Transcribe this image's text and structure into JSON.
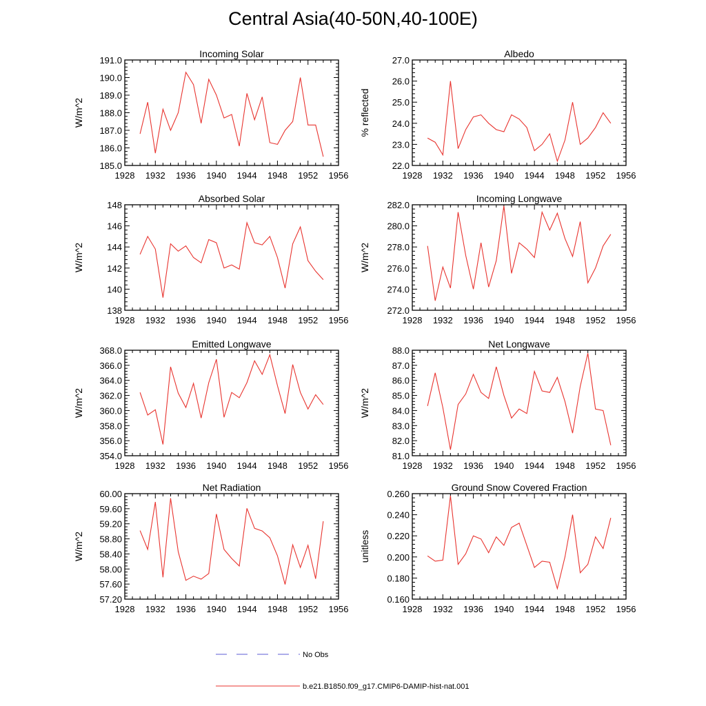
{
  "figure": {
    "title": "Central Asia(40-50N,40-100E)"
  },
  "legend": {
    "entries": [
      {
        "label": "No Obs",
        "color": "#5b5bd6",
        "dashed": true
      },
      {
        "label": "b.e21.B1850.f09_g17.CMIP6-DAMIP-hist-nat.001",
        "color": "#e8332e",
        "dashed": false
      }
    ]
  },
  "colors": {
    "series": "#e8332e",
    "axes": "#000000"
  },
  "chart_data": [
    {
      "type": "line",
      "title": "Incoming Solar",
      "ylabel": "W/m^2",
      "xlabel": "",
      "xlim": [
        1928,
        1956
      ],
      "ylim": [
        185.0,
        191.0
      ],
      "grid": false,
      "xticks": [
        "1928",
        "1932",
        "1936",
        "1940",
        "1944",
        "1948",
        "1952",
        "1956"
      ],
      "yticks": [
        "185.0",
        "186.0",
        "187.0",
        "188.0",
        "189.0",
        "190.0",
        "191.0"
      ],
      "x": [
        1930,
        1931,
        1932,
        1933,
        1934,
        1935,
        1936,
        1937,
        1938,
        1939,
        1940,
        1941,
        1942,
        1943,
        1944,
        1945,
        1946,
        1947,
        1948,
        1949,
        1950,
        1951,
        1952,
        1953,
        1954
      ],
      "series": [
        {
          "values": [
            186.8,
            188.6,
            185.7,
            188.2,
            187.0,
            188.0,
            190.3,
            189.6,
            187.4,
            189.9,
            189.0,
            187.7,
            187.9,
            186.1,
            189.1,
            187.6,
            188.9,
            186.3,
            186.2,
            187.0,
            187.5,
            190.0,
            187.3,
            187.3,
            185.5
          ]
        }
      ]
    },
    {
      "type": "line",
      "title": "Albedo",
      "ylabel": "% reflected",
      "xlabel": "",
      "xlim": [
        1928,
        1956
      ],
      "ylim": [
        22.0,
        27.0
      ],
      "grid": false,
      "xticks": [
        "1928",
        "1932",
        "1936",
        "1940",
        "1944",
        "1948",
        "1952",
        "1956"
      ],
      "yticks": [
        "22.0",
        "23.0",
        "24.0",
        "25.0",
        "26.0",
        "27.0"
      ],
      "x": [
        1930,
        1931,
        1932,
        1933,
        1934,
        1935,
        1936,
        1937,
        1938,
        1939,
        1940,
        1941,
        1942,
        1943,
        1944,
        1945,
        1946,
        1947,
        1948,
        1949,
        1950,
        1951,
        1952,
        1953,
        1954
      ],
      "series": [
        {
          "values": [
            23.3,
            23.1,
            22.5,
            26.0,
            22.8,
            23.7,
            24.3,
            24.4,
            24.0,
            23.7,
            23.6,
            24.4,
            24.2,
            23.8,
            22.7,
            23.0,
            23.5,
            22.2,
            23.2,
            25.0,
            23.0,
            23.3,
            23.8,
            24.5,
            24.0
          ]
        }
      ]
    },
    {
      "type": "line",
      "title": "Absorbed Solar",
      "ylabel": "W/m^2",
      "xlabel": "",
      "xlim": [
        1928,
        1956
      ],
      "ylim": [
        138,
        148
      ],
      "grid": false,
      "xticks": [
        "1928",
        "1932",
        "1936",
        "1940",
        "1944",
        "1948",
        "1952",
        "1956"
      ],
      "yticks": [
        "138",
        "140",
        "142",
        "144",
        "146",
        "148"
      ],
      "x": [
        1930,
        1931,
        1932,
        1933,
        1934,
        1935,
        1936,
        1937,
        1938,
        1939,
        1940,
        1941,
        1942,
        1943,
        1944,
        1945,
        1946,
        1947,
        1948,
        1949,
        1950,
        1951,
        1952,
        1953,
        1954
      ],
      "series": [
        {
          "values": [
            143.3,
            145.0,
            143.8,
            139.2,
            144.3,
            143.6,
            144.1,
            143.0,
            142.5,
            144.7,
            144.4,
            142.0,
            142.3,
            141.9,
            146.3,
            144.4,
            144.2,
            145.0,
            143.0,
            140.1,
            144.3,
            145.9,
            142.7,
            141.7,
            140.9
          ]
        }
      ]
    },
    {
      "type": "line",
      "title": "Incoming Longwave",
      "ylabel": "W/m^2",
      "xlabel": "",
      "xlim": [
        1928,
        1956
      ],
      "ylim": [
        272.0,
        282.0
      ],
      "grid": false,
      "xticks": [
        "1928",
        "1932",
        "1936",
        "1940",
        "1944",
        "1948",
        "1952",
        "1956"
      ],
      "yticks": [
        "272.0",
        "274.0",
        "276.0",
        "278.0",
        "280.0",
        "282.0"
      ],
      "x": [
        1930,
        1931,
        1932,
        1933,
        1934,
        1935,
        1936,
        1937,
        1938,
        1939,
        1940,
        1941,
        1942,
        1943,
        1944,
        1945,
        1946,
        1947,
        1948,
        1949,
        1950,
        1951,
        1952,
        1953,
        1954
      ],
      "series": [
        {
          "values": [
            278.1,
            272.9,
            276.1,
            274.1,
            281.3,
            277.2,
            274.0,
            278.4,
            274.2,
            276.7,
            281.9,
            275.5,
            278.4,
            277.8,
            277.0,
            281.3,
            279.6,
            281.2,
            278.8,
            277.1,
            280.4,
            274.6,
            276.0,
            278.1,
            279.2
          ]
        }
      ]
    },
    {
      "type": "line",
      "title": "Emitted Longwave",
      "ylabel": "W/m^2",
      "xlabel": "",
      "xlim": [
        1928,
        1956
      ],
      "ylim": [
        354.0,
        368.0
      ],
      "grid": false,
      "xticks": [
        "1928",
        "1932",
        "1936",
        "1940",
        "1944",
        "1948",
        "1952",
        "1956"
      ],
      "yticks": [
        "354.0",
        "356.0",
        "358.0",
        "360.0",
        "362.0",
        "364.0",
        "366.0",
        "368.0"
      ],
      "x": [
        1930,
        1931,
        1932,
        1933,
        1934,
        1935,
        1936,
        1937,
        1938,
        1939,
        1940,
        1941,
        1942,
        1943,
        1944,
        1945,
        1946,
        1947,
        1948,
        1949,
        1950,
        1951,
        1952,
        1953,
        1954
      ],
      "series": [
        {
          "values": [
            362.4,
            359.4,
            360.1,
            355.5,
            365.8,
            362.3,
            360.4,
            363.6,
            359.0,
            363.7,
            366.8,
            359.1,
            362.4,
            361.7,
            363.7,
            366.6,
            364.8,
            367.4,
            363.3,
            359.6,
            366.1,
            362.4,
            360.2,
            362.1,
            360.8
          ]
        }
      ]
    },
    {
      "type": "line",
      "title": "Net Longwave",
      "ylabel": "W/m^2",
      "xlabel": "",
      "xlim": [
        1928,
        1956
      ],
      "ylim": [
        81.0,
        88.0
      ],
      "grid": false,
      "xticks": [
        "1928",
        "1932",
        "1936",
        "1940",
        "1944",
        "1948",
        "1952",
        "1956"
      ],
      "yticks": [
        "81.0",
        "82.0",
        "83.0",
        "84.0",
        "85.0",
        "86.0",
        "87.0",
        "88.0"
      ],
      "x": [
        1930,
        1931,
        1932,
        1933,
        1934,
        1935,
        1936,
        1937,
        1938,
        1939,
        1940,
        1941,
        1942,
        1943,
        1944,
        1945,
        1946,
        1947,
        1948,
        1949,
        1950,
        1951,
        1952,
        1953,
        1954
      ],
      "series": [
        {
          "values": [
            84.3,
            86.5,
            84.2,
            81.4,
            84.4,
            85.1,
            86.4,
            85.2,
            84.8,
            86.9,
            85.0,
            83.5,
            84.1,
            83.8,
            86.6,
            85.3,
            85.2,
            86.2,
            84.6,
            82.5,
            85.6,
            87.8,
            84.1,
            84.0,
            81.7
          ]
        }
      ]
    },
    {
      "type": "line",
      "title": "Net Radiation",
      "ylabel": "W/m^2",
      "xlabel": "",
      "xlim": [
        1928,
        1956
      ],
      "ylim": [
        57.2,
        60.0
      ],
      "grid": false,
      "xticks": [
        "1928",
        "1932",
        "1936",
        "1940",
        "1944",
        "1948",
        "1952",
        "1956"
      ],
      "yticks": [
        "57.20",
        "57.60",
        "58.00",
        "58.40",
        "58.80",
        "59.20",
        "59.60",
        "60.00"
      ],
      "x": [
        1930,
        1931,
        1932,
        1933,
        1934,
        1935,
        1936,
        1937,
        1938,
        1939,
        1940,
        1941,
        1942,
        1943,
        1944,
        1945,
        1946,
        1947,
        1948,
        1949,
        1950,
        1951,
        1952,
        1953,
        1954
      ],
      "series": [
        {
          "values": [
            59.02,
            58.52,
            59.78,
            57.78,
            59.88,
            58.46,
            57.7,
            57.81,
            57.73,
            57.88,
            59.46,
            58.52,
            58.28,
            58.08,
            59.61,
            59.08,
            59.01,
            58.83,
            58.35,
            57.59,
            58.64,
            58.04,
            58.63,
            57.74,
            59.27
          ]
        }
      ]
    },
    {
      "type": "line",
      "title": "Ground Snow Covered Fraction",
      "ylabel": "unitless",
      "xlabel": "",
      "xlim": [
        1928,
        1956
      ],
      "ylim": [
        0.16,
        0.26
      ],
      "grid": false,
      "xticks": [
        "1928",
        "1932",
        "1936",
        "1940",
        "1944",
        "1948",
        "1952",
        "1956"
      ],
      "yticks": [
        "0.160",
        "0.180",
        "0.200",
        "0.220",
        "0.240",
        "0.260"
      ],
      "x": [
        1930,
        1931,
        1932,
        1933,
        1934,
        1935,
        1936,
        1937,
        1938,
        1939,
        1940,
        1941,
        1942,
        1943,
        1944,
        1945,
        1946,
        1947,
        1948,
        1949,
        1950,
        1951,
        1952,
        1953,
        1954
      ],
      "series": [
        {
          "values": [
            0.201,
            0.196,
            0.197,
            0.258,
            0.193,
            0.203,
            0.22,
            0.217,
            0.204,
            0.219,
            0.211,
            0.228,
            0.232,
            0.211,
            0.19,
            0.196,
            0.195,
            0.17,
            0.2,
            0.24,
            0.185,
            0.193,
            0.219,
            0.208,
            0.237
          ]
        }
      ]
    }
  ]
}
